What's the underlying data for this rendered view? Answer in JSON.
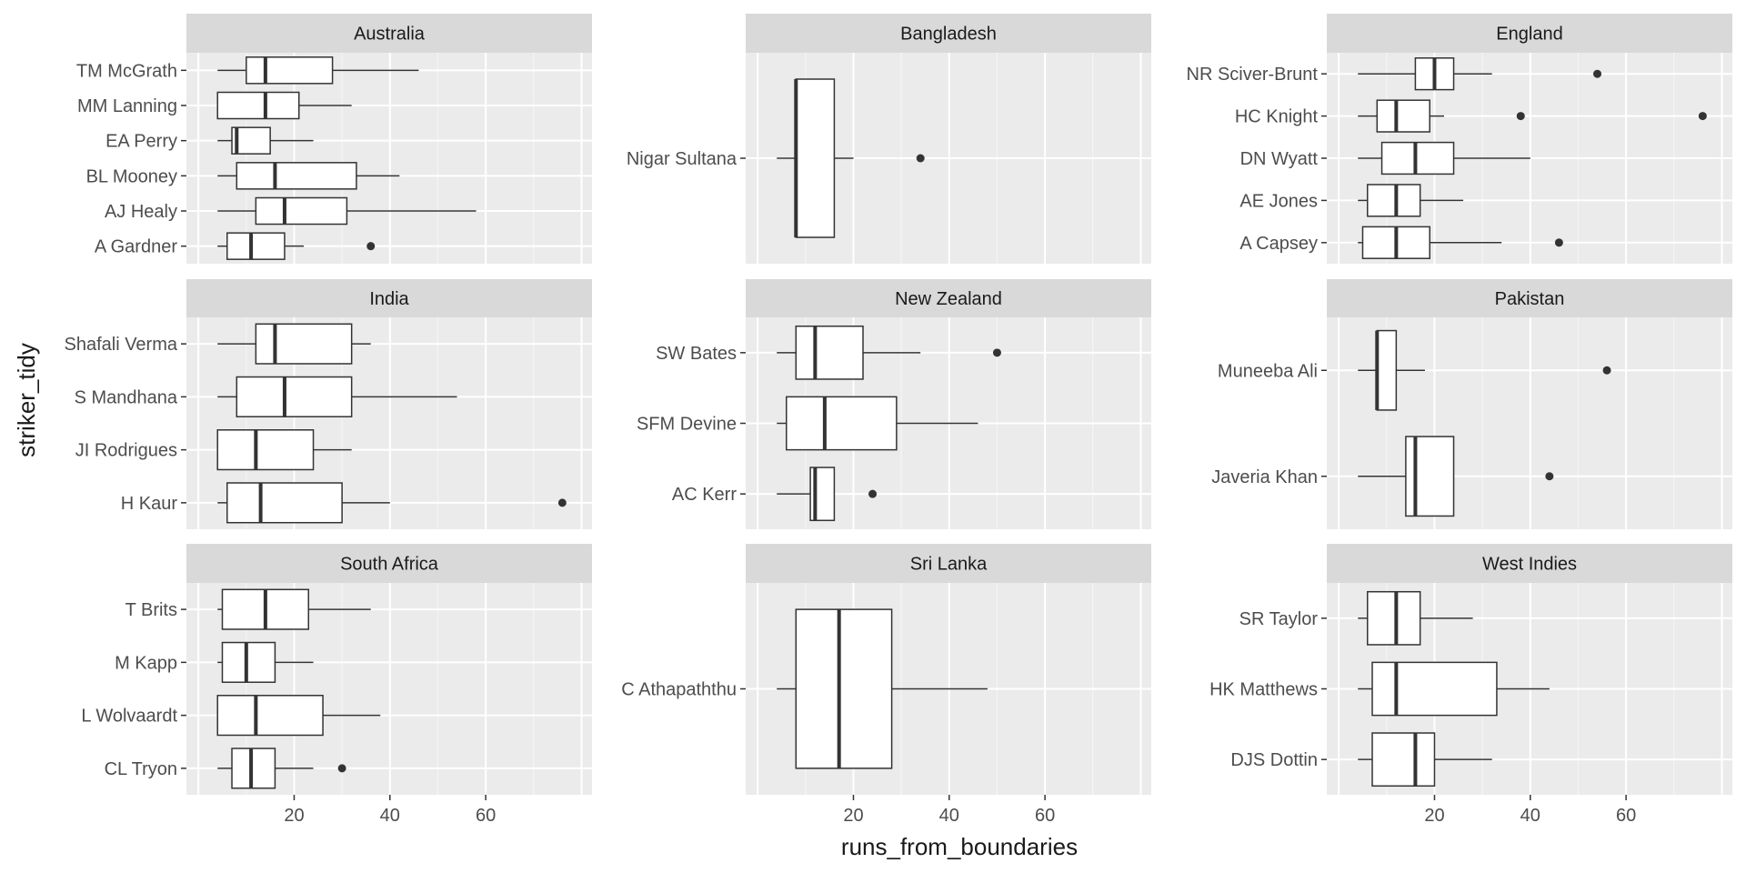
{
  "chart_data": {
    "type": "boxplot",
    "layout": "facet_wrap 3x3, free y",
    "xlabel": "runs_from_boundaries",
    "ylabel": "striker_tidy",
    "xlim": [
      0,
      80
    ],
    "x_ticks": [
      20,
      40,
      60
    ],
    "panels": [
      {
        "title": "Australia",
        "players": [
          {
            "name": "TM McGrath",
            "min": 4,
            "q1": 10,
            "median": 14,
            "q3": 28,
            "max": 46,
            "outliers": []
          },
          {
            "name": "MM Lanning",
            "min": 4,
            "q1": 4,
            "median": 14,
            "q3": 21,
            "max": 32,
            "outliers": []
          },
          {
            "name": "EA Perry",
            "min": 4,
            "q1": 7,
            "median": 8,
            "q3": 15,
            "max": 24,
            "outliers": []
          },
          {
            "name": "BL Mooney",
            "min": 4,
            "q1": 8,
            "median": 16,
            "q3": 33,
            "max": 42,
            "outliers": []
          },
          {
            "name": "AJ Healy",
            "min": 4,
            "q1": 12,
            "median": 18,
            "q3": 31,
            "max": 58,
            "outliers": []
          },
          {
            "name": "A Gardner",
            "min": 4,
            "q1": 6,
            "median": 11,
            "q3": 18,
            "max": 22,
            "outliers": [
              36
            ]
          }
        ]
      },
      {
        "title": "Bangladesh",
        "players": [
          {
            "name": "Nigar Sultana",
            "min": 4,
            "q1": 8,
            "median": 8,
            "q3": 16,
            "max": 20,
            "outliers": [
              34
            ]
          }
        ]
      },
      {
        "title": "England",
        "players": [
          {
            "name": "NR Sciver-Brunt",
            "min": 4,
            "q1": 16,
            "median": 20,
            "q3": 24,
            "max": 32,
            "outliers": [
              54
            ]
          },
          {
            "name": "HC Knight",
            "min": 4,
            "q1": 8,
            "median": 12,
            "q3": 19,
            "max": 22,
            "outliers": [
              38,
              76
            ]
          },
          {
            "name": "DN Wyatt",
            "min": 4,
            "q1": 9,
            "median": 16,
            "q3": 24,
            "max": 40,
            "outliers": []
          },
          {
            "name": "AE Jones",
            "min": 4,
            "q1": 6,
            "median": 12,
            "q3": 17,
            "max": 26,
            "outliers": []
          },
          {
            "name": "A Capsey",
            "min": 4,
            "q1": 5,
            "median": 12,
            "q3": 19,
            "max": 34,
            "outliers": [
              46
            ]
          }
        ]
      },
      {
        "title": "India",
        "players": [
          {
            "name": "Shafali Verma",
            "min": 4,
            "q1": 12,
            "median": 16,
            "q3": 32,
            "max": 36,
            "outliers": []
          },
          {
            "name": "S Mandhana",
            "min": 4,
            "q1": 8,
            "median": 18,
            "q3": 32,
            "max": 54,
            "outliers": []
          },
          {
            "name": "JI Rodrigues",
            "min": 4,
            "q1": 4,
            "median": 12,
            "q3": 24,
            "max": 32,
            "outliers": []
          },
          {
            "name": "H Kaur",
            "min": 4,
            "q1": 6,
            "median": 13,
            "q3": 30,
            "max": 40,
            "outliers": [
              76
            ]
          }
        ]
      },
      {
        "title": "New Zealand",
        "players": [
          {
            "name": "SW Bates",
            "min": 4,
            "q1": 8,
            "median": 12,
            "q3": 22,
            "max": 34,
            "outliers": [
              50
            ]
          },
          {
            "name": "SFM Devine",
            "min": 4,
            "q1": 6,
            "median": 14,
            "q3": 29,
            "max": 46,
            "outliers": []
          },
          {
            "name": "AC Kerr",
            "min": 4,
            "q1": 11,
            "median": 12,
            "q3": 16,
            "max": 16,
            "outliers": [
              24
            ]
          }
        ]
      },
      {
        "title": "Pakistan",
        "players": [
          {
            "name": "Muneeba Ali",
            "min": 4,
            "q1": 8,
            "median": 8,
            "q3": 12,
            "max": 18,
            "outliers": [
              56
            ]
          },
          {
            "name": "Javeria Khan",
            "min": 4,
            "q1": 14,
            "median": 16,
            "q3": 24,
            "max": 24,
            "outliers": [
              44
            ]
          }
        ]
      },
      {
        "title": "South Africa",
        "players": [
          {
            "name": "T Brits",
            "min": 4,
            "q1": 5,
            "median": 14,
            "q3": 23,
            "max": 36,
            "outliers": []
          },
          {
            "name": "M Kapp",
            "min": 4,
            "q1": 5,
            "median": 10,
            "q3": 16,
            "max": 24,
            "outliers": []
          },
          {
            "name": "L Wolvaardt",
            "min": 4,
            "q1": 4,
            "median": 12,
            "q3": 26,
            "max": 38,
            "outliers": []
          },
          {
            "name": "CL Tryon",
            "min": 4,
            "q1": 7,
            "median": 11,
            "q3": 16,
            "max": 24,
            "outliers": [
              30
            ]
          }
        ]
      },
      {
        "title": "Sri Lanka",
        "players": [
          {
            "name": "C Athapaththu",
            "min": 4,
            "q1": 8,
            "median": 17,
            "q3": 28,
            "max": 48,
            "outliers": []
          }
        ]
      },
      {
        "title": "West Indies",
        "players": [
          {
            "name": "SR Taylor",
            "min": 4,
            "q1": 6,
            "median": 12,
            "q3": 17,
            "max": 28,
            "outliers": []
          },
          {
            "name": "HK Matthews",
            "min": 4,
            "q1": 7,
            "median": 12,
            "q3": 33,
            "max": 44,
            "outliers": []
          },
          {
            "name": "DJS Dottin",
            "min": 4,
            "q1": 7,
            "median": 16,
            "q3": 20,
            "max": 32,
            "outliers": []
          }
        ]
      }
    ]
  },
  "colors": {
    "panel_bg": "#ebebeb",
    "strip_bg": "#d9d9d9",
    "grid_major": "#ffffff",
    "grid_minor": "#f5f5f5",
    "box_fill": "#ffffff",
    "box_line": "#333333",
    "axis_text": "#4d4d4d",
    "title_text": "#1a1a1a"
  }
}
